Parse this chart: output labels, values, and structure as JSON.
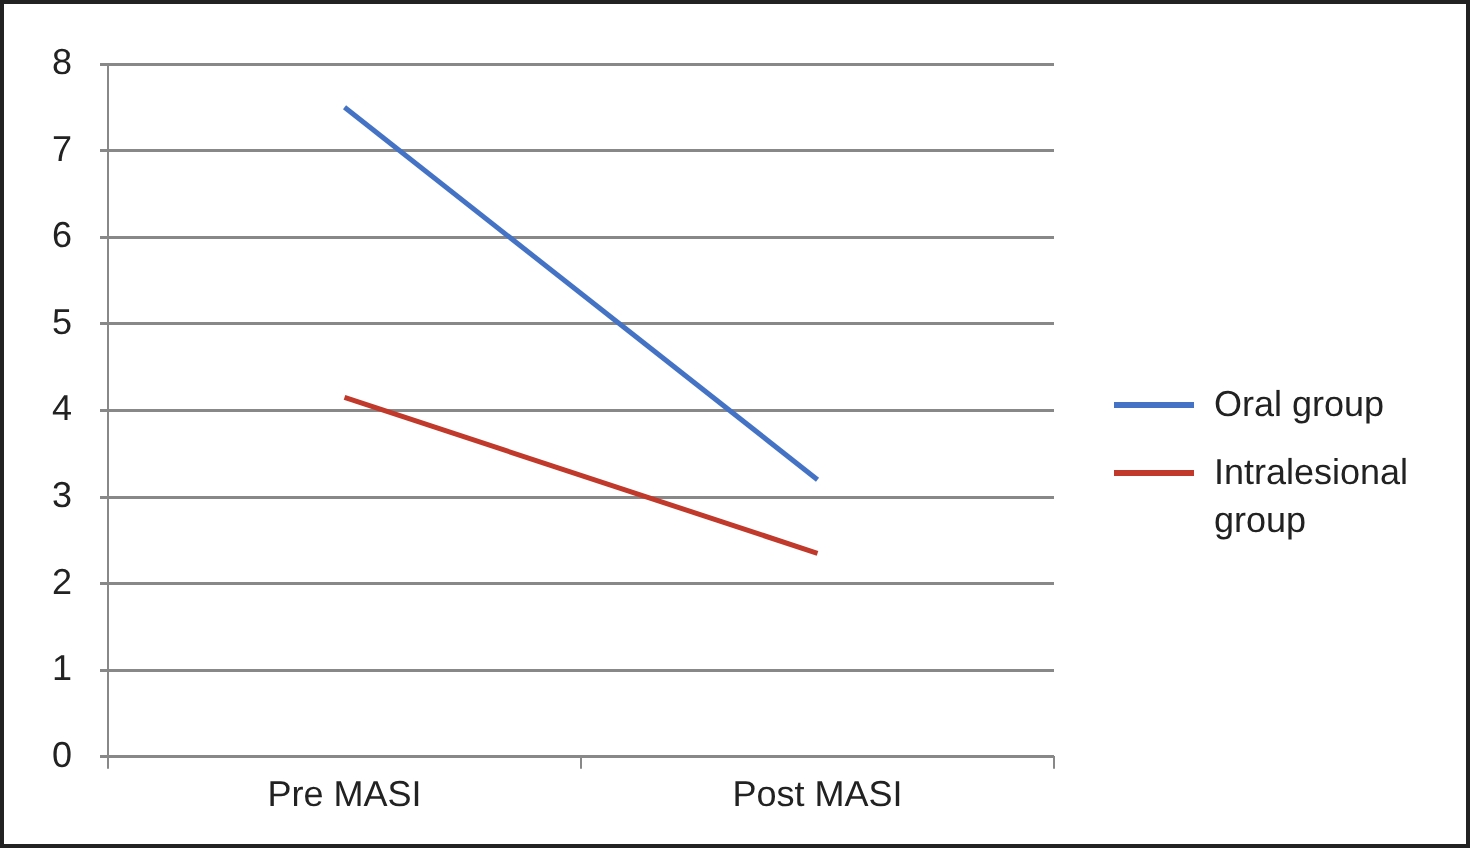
{
  "chart_data": {
    "type": "line",
    "categories": [
      "Pre MASI",
      "Post MASI"
    ],
    "series": [
      {
        "name": "Oral group",
        "color": "#4472c4",
        "values": [
          7.5,
          3.2
        ]
      },
      {
        "name": "Intralesional group",
        "color": "#c0392b",
        "values": [
          4.15,
          2.35
        ]
      }
    ],
    "ylim": [
      0,
      8
    ],
    "yticks": [
      0,
      1,
      2,
      3,
      4,
      5,
      6,
      7,
      8
    ],
    "grid": "y",
    "legend": "right",
    "marker": "none",
    "line_style": "solid"
  }
}
